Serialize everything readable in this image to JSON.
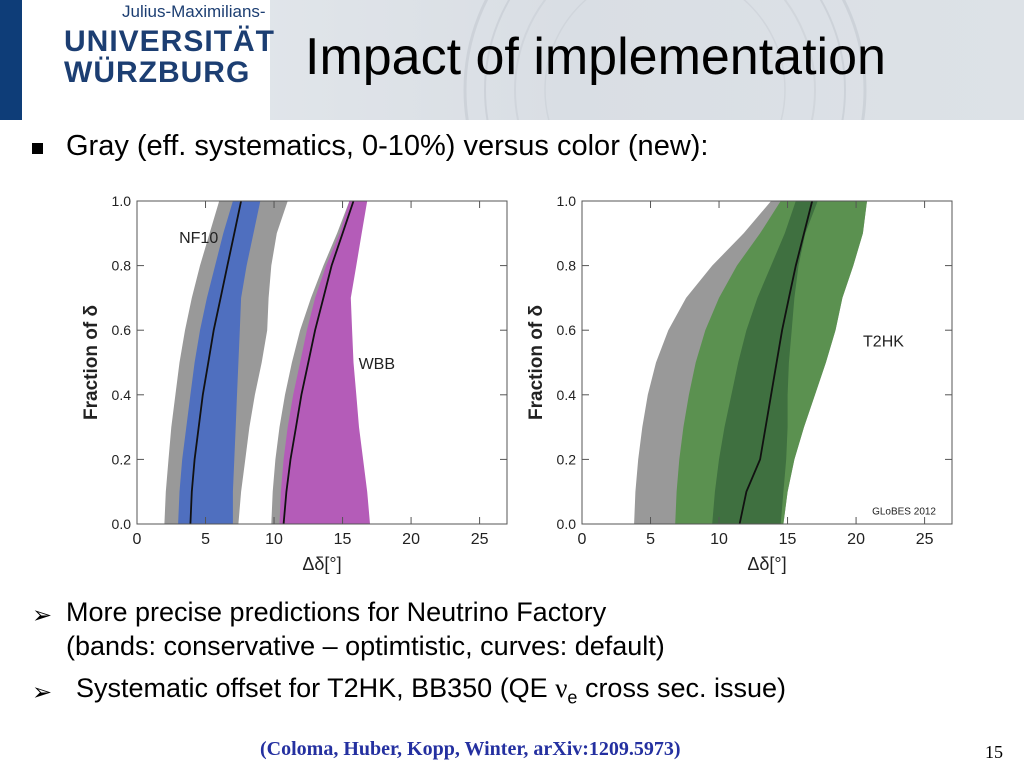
{
  "header": {
    "logo_small": "Julius-Maximilians-",
    "logo_line1": "UNIVERSITÄT",
    "logo_line2": "WÜRZBURG",
    "title": "Impact of implementation"
  },
  "bullets": {
    "first": "Gray (eff. systematics, 0-10%) versus color (new):",
    "second_line1": "More precise predictions for Neutrino Factory",
    "second_line2": "(bands: conservative – optimtistic, curves: default)",
    "third_pre": "Systematic offset for T2HK, BB350 (QE ",
    "third_nu": "ν",
    "third_sub": "e",
    "third_post": " cross sec. issue)"
  },
  "citation": "(Coloma, Huber, Kopp, Winter, arXiv:1209.5973)",
  "page_number": "15",
  "colors": {
    "gray": "#999999",
    "blue": "#4f6fbf",
    "magenta": "#b45cb8",
    "green_light": "#5b9150",
    "green_dark": "#3f7040",
    "logo_blue": "#1c3e72"
  },
  "chart_data": [
    {
      "type": "area",
      "xlabel": "Δδ[°]",
      "ylabel": "Fraction of δ",
      "xlim": [
        0,
        27
      ],
      "ylim": [
        0,
        1
      ],
      "x_ticks": [
        "0",
        "5",
        "10",
        "15",
        "20",
        "25"
      ],
      "y_ticks": [
        "0.0",
        "0.2",
        "0.4",
        "0.6",
        "0.8",
        "1.0"
      ],
      "grid": false,
      "annotations": [
        "NF10",
        "WBB"
      ],
      "series": [
        {
          "label": "NF10",
          "kind": "gray",
          "y": [
            0,
            0.1,
            0.2,
            0.3,
            0.4,
            0.5,
            0.6,
            0.7,
            0.8,
            0.9,
            1.0
          ],
          "x_low": [
            2.0,
            2.1,
            2.3,
            2.5,
            2.8,
            3.1,
            3.5,
            4.0,
            4.6,
            5.3,
            6.0
          ],
          "x_high": [
            7.4,
            7.6,
            7.9,
            8.2,
            8.6,
            9.1,
            9.5,
            9.6,
            9.8,
            10.2,
            11.0
          ]
        },
        {
          "label": "NF10",
          "kind": "blue",
          "y": [
            0,
            0.1,
            0.2,
            0.3,
            0.4,
            0.5,
            0.6,
            0.7,
            0.8,
            0.9,
            1.0
          ],
          "x_low": [
            3.0,
            3.1,
            3.3,
            3.6,
            3.9,
            4.2,
            4.6,
            5.1,
            5.7,
            6.3,
            7.0
          ],
          "x_high": [
            7.0,
            7.0,
            7.1,
            7.2,
            7.3,
            7.4,
            7.5,
            7.6,
            8.0,
            8.5,
            9.0
          ]
        },
        {
          "label": "NF10",
          "kind": "default_curve",
          "y": [
            0,
            0.1,
            0.2,
            0.3,
            0.4,
            0.5,
            0.6,
            0.7,
            0.8,
            0.9,
            1.0
          ],
          "x": [
            3.9,
            4.0,
            4.2,
            4.5,
            4.8,
            5.2,
            5.6,
            6.1,
            6.6,
            7.1,
            7.6
          ]
        },
        {
          "label": "WBB",
          "kind": "gray",
          "y": [
            0,
            0.1,
            0.2,
            0.3,
            0.4,
            0.5,
            0.6,
            0.7,
            0.8,
            0.9,
            1.0
          ],
          "x_low": [
            9.8,
            9.9,
            10.1,
            10.4,
            10.8,
            11.3,
            11.9,
            12.7,
            13.6,
            14.6,
            15.5
          ],
          "x_high": [
            16.3,
            16.1,
            15.9,
            15.7,
            15.6,
            15.5,
            15.3,
            15.2,
            15.5,
            16.0,
            16.5
          ]
        },
        {
          "label": "WBB",
          "kind": "magenta",
          "y": [
            0,
            0.1,
            0.2,
            0.3,
            0.4,
            0.5,
            0.6,
            0.7,
            0.8,
            0.9,
            1.0
          ],
          "x_low": [
            10.4,
            10.5,
            10.7,
            11.0,
            11.4,
            11.9,
            12.4,
            13.0,
            13.8,
            14.8,
            15.5
          ],
          "x_high": [
            17.0,
            16.8,
            16.5,
            16.2,
            16.0,
            15.8,
            15.7,
            15.6,
            16.0,
            16.4,
            16.8
          ]
        },
        {
          "label": "WBB",
          "kind": "default_curve",
          "y": [
            0,
            0.1,
            0.2,
            0.3,
            0.4,
            0.5,
            0.6,
            0.7,
            0.8,
            0.9,
            1.0
          ],
          "x": [
            10.7,
            10.9,
            11.2,
            11.6,
            12.0,
            12.5,
            13.0,
            13.6,
            14.2,
            15.0,
            15.8
          ]
        }
      ]
    },
    {
      "type": "area",
      "xlabel": "Δδ[°]",
      "ylabel": "Fraction of δ",
      "xlim": [
        0,
        27
      ],
      "ylim": [
        0,
        1
      ],
      "x_ticks": [
        "0",
        "5",
        "10",
        "15",
        "20",
        "25"
      ],
      "y_ticks": [
        "0.0",
        "0.2",
        "0.4",
        "0.6",
        "0.8",
        "1.0"
      ],
      "grid": false,
      "annotations": [
        "T2HK",
        "GLoBES 2012"
      ],
      "series": [
        {
          "label": "T2HK",
          "kind": "gray",
          "y": [
            0,
            0.1,
            0.2,
            0.3,
            0.4,
            0.5,
            0.6,
            0.7,
            0.8,
            0.9,
            1.0
          ],
          "x_low": [
            3.8,
            3.9,
            4.1,
            4.4,
            4.8,
            5.4,
            6.3,
            7.6,
            9.5,
            11.8,
            13.8
          ],
          "x_high": [
            14.7,
            15.0,
            15.5,
            16.2,
            17.0,
            17.8,
            18.5,
            19.0,
            19.8,
            20.5,
            20.8
          ]
        },
        {
          "label": "T2HK",
          "kind": "green_light",
          "y": [
            0,
            0.1,
            0.2,
            0.3,
            0.4,
            0.5,
            0.6,
            0.7,
            0.8,
            0.9,
            1.0
          ],
          "x_low": [
            6.8,
            6.9,
            7.1,
            7.4,
            7.8,
            8.3,
            9.0,
            10.0,
            11.3,
            13.0,
            14.5
          ],
          "x_high": [
            14.7,
            15.0,
            15.5,
            16.2,
            17.0,
            17.8,
            18.5,
            19.0,
            19.8,
            20.5,
            20.8
          ]
        },
        {
          "label": "T2HK",
          "kind": "green_dark",
          "y": [
            0,
            0.1,
            0.2,
            0.3,
            0.4,
            0.5,
            0.6,
            0.7,
            0.8,
            0.9,
            1.0
          ],
          "x_low": [
            9.5,
            9.7,
            10.0,
            10.4,
            10.9,
            11.4,
            12.0,
            12.8,
            13.8,
            14.8,
            15.6
          ],
          "x_high": [
            14.5,
            14.7,
            14.9,
            15.0,
            15.0,
            15.1,
            15.3,
            15.5,
            15.8,
            16.3,
            17.2
          ]
        },
        {
          "label": "T2HK",
          "kind": "default_curve",
          "y": [
            0,
            0.1,
            0.2,
            0.3,
            0.4,
            0.5,
            0.6,
            0.7,
            0.8,
            0.9,
            1.0
          ],
          "x": [
            11.5,
            12.0,
            13.0,
            13.4,
            13.8,
            14.2,
            14.6,
            15.1,
            15.6,
            16.2,
            16.8
          ]
        }
      ]
    }
  ]
}
